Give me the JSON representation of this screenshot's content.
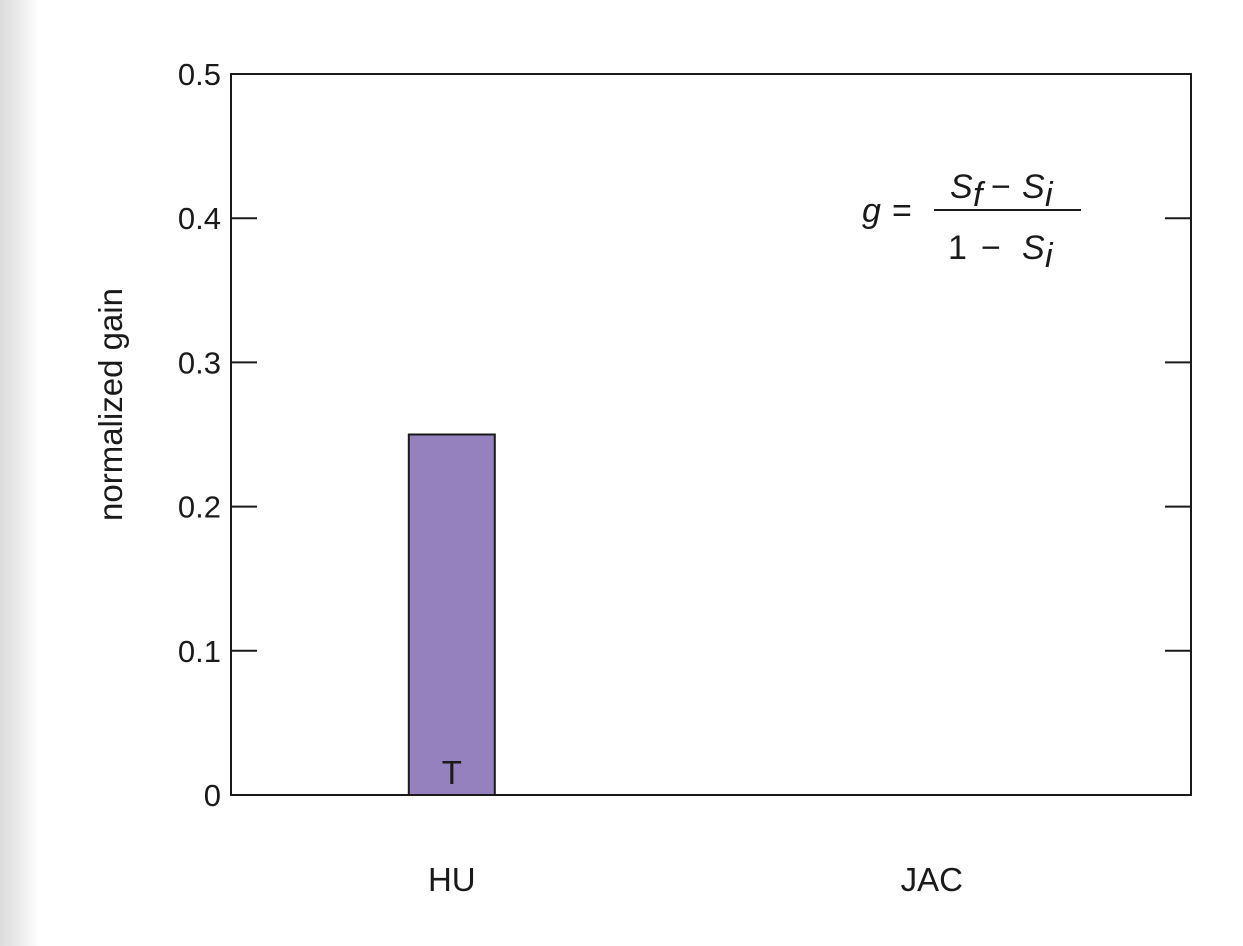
{
  "chart_data": {
    "type": "bar",
    "categories": [
      "HU",
      "JAC"
    ],
    "values": [
      0.25,
      null
    ],
    "bar_labels": [
      "T",
      ""
    ],
    "ylabel": "normalized gain",
    "ylim": [
      0,
      0.5
    ],
    "yticks": [
      0,
      0.1,
      0.2,
      0.3,
      0.4,
      0.5
    ],
    "ytick_labels": [
      "0",
      "0.1",
      "0.2",
      "0.3",
      "0.4",
      "0.5"
    ],
    "grid": false,
    "colors": {
      "bar_fill": "#9581bd",
      "bar_stroke": "#1a1a1a",
      "axis": "#1a1a1a"
    },
    "annotation": {
      "lhs": "g",
      "equals": "=",
      "numerator": {
        "a": "S",
        "a_sub": "f",
        "minus": "−",
        "b": "S",
        "b_sub": "i"
      },
      "denominator": {
        "one": "1",
        "minus": "−",
        "b": "S",
        "b_sub": "i"
      }
    }
  }
}
